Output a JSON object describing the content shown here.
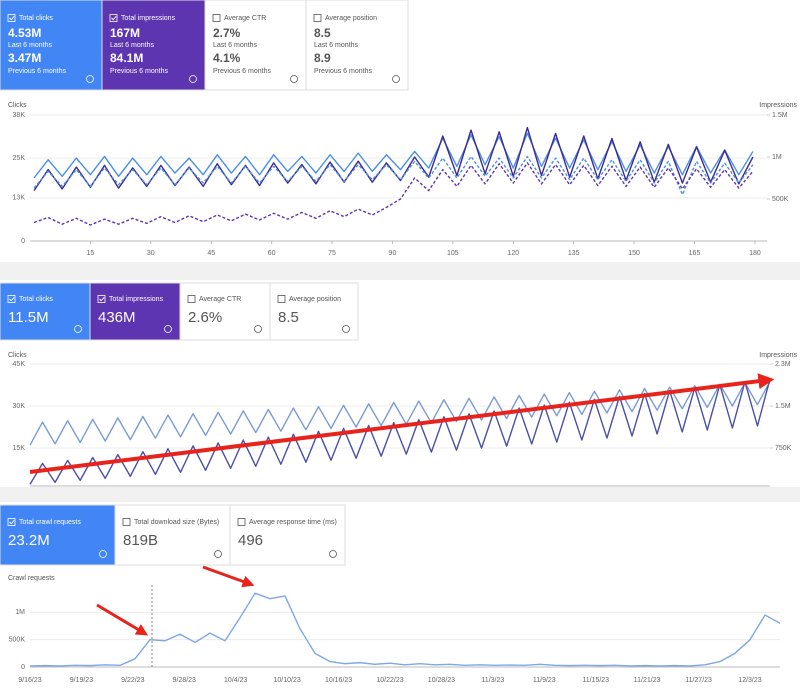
{
  "panels": [
    {
      "cards": [
        {
          "title": "Total clicks",
          "value": "4.53M",
          "period": "Last 6 months",
          "previous_value": "3.47M",
          "previous_period": "Previous 6 months",
          "color": "#4285f4"
        },
        {
          "title": "Total impressions",
          "value": "167M",
          "period": "Last 6 months",
          "previous_value": "84.1M",
          "previous_period": "Previous 6 months",
          "color": "#5e35b1"
        },
        {
          "title": "Average CTR",
          "value": "2.7%",
          "period": "Last 6 months",
          "previous_value": "4.1%",
          "previous_period": "Previous 6 months"
        },
        {
          "title": "Average position",
          "value": "8.5",
          "period": "Last 6 months",
          "previous_value": "8.9",
          "previous_period": "Previous 6 months"
        }
      ],
      "chart": {
        "type": "line",
        "y_label": "Clicks",
        "y2_label": "Impressions",
        "ylim": [
          0,
          38000
        ],
        "yticks": [
          0,
          {
            "value": 13000,
            "label": "13K"
          },
          {
            "value": 25000,
            "label": "25K"
          },
          {
            "value": 38000,
            "label": "38K"
          }
        ],
        "y2lim": [
          0,
          1500000
        ],
        "y2ticks": [
          {
            "value": 500000,
            "label": "500K"
          },
          {
            "value": 1000000,
            "label": "1M"
          },
          {
            "value": 1500000,
            "label": "1.5M"
          }
        ],
        "xlim": [
          0,
          183
        ],
        "xticks": [
          15,
          30,
          45,
          60,
          75,
          90,
          105,
          120,
          135,
          150,
          165,
          180
        ],
        "x": [
          1,
          4.5,
          8,
          11.5,
          15,
          18.5,
          22,
          25.5,
          29,
          32.5,
          36,
          39.5,
          43,
          46.5,
          50,
          53.5,
          57,
          60.5,
          64,
          67.5,
          71,
          74.5,
          78,
          81.5,
          85,
          88.5,
          92,
          95.5,
          99,
          102.5,
          106,
          109.5,
          113,
          116.5,
          120,
          123.5,
          127,
          130.5,
          134,
          137.5,
          141,
          144.5,
          148,
          151.5,
          155,
          158.5,
          162,
          165.5,
          169,
          172.5,
          176,
          179.5
        ],
        "series": [
          {
            "color": "#4a90e8",
            "dashed": false,
            "axis": "y",
            "values": [
              19000,
              24500,
              19500,
              25000,
              20000,
              25500,
              19500,
              25000,
              20000,
              25500,
              20500,
              25000,
              20000,
              26000,
              20500,
              25500,
              20000,
              26000,
              21000,
              25500,
              20500,
              26000,
              21000,
              26500,
              21000,
              26000,
              21500,
              27000,
              22000,
              31000,
              22500,
              32000,
              23000,
              31500,
              22000,
              32500,
              22500,
              31000,
              22000,
              30500,
              21500,
              30000,
              21000,
              29000,
              20500,
              28500,
              20000,
              28500,
              20500,
              27500,
              20000,
              27000
            ]
          },
          {
            "color": "#3d2a8f",
            "dashed": false,
            "axis": "y2",
            "values": [
              600000,
              850000,
              620000,
              880000,
              640000,
              900000,
              630000,
              870000,
              650000,
              900000,
              660000,
              880000,
              650000,
              920000,
              670000,
              900000,
              660000,
              930000,
              690000,
              910000,
              680000,
              940000,
              700000,
              950000,
              700000,
              930000,
              720000,
              1000000,
              760000,
              1250000,
              780000,
              1320000,
              800000,
              1300000,
              770000,
              1350000,
              780000,
              1280000,
              760000,
              1250000,
              740000,
              1220000,
              720000,
              1180000,
              700000,
              1150000,
              690000,
              1120000,
              700000,
              1080000,
              680000,
              1000000
            ]
          },
          {
            "color": "#4a90e8",
            "dashed": true,
            "axis": "y",
            "values": [
              16000,
              21000,
              16500,
              21500,
              16500,
              22000,
              17000,
              21500,
              17000,
              22000,
              17000,
              22000,
              17500,
              22500,
              17500,
              22500,
              17500,
              22500,
              18000,
              22500,
              18000,
              23000,
              18000,
              23000,
              18500,
              23000,
              18500,
              24000,
              19000,
              25000,
              19000,
              25500,
              19500,
              25000,
              19000,
              25500,
              19000,
              25000,
              18500,
              25000,
              18500,
              24500,
              18000,
              24500,
              17500,
              24000,
              14000,
              24000,
              17500,
              23500,
              17500,
              23000
            ]
          },
          {
            "color": "#5e35b1",
            "dashed": true,
            "axis": "y2",
            "values": [
              220000,
              280000,
              200000,
              270000,
              190000,
              260000,
              200000,
              270000,
              210000,
              290000,
              220000,
              300000,
              230000,
              310000,
              240000,
              320000,
              250000,
              330000,
              260000,
              340000,
              270000,
              360000,
              290000,
              380000,
              310000,
              400000,
              500000,
              750000,
              600000,
              850000,
              650000,
              900000,
              680000,
              920000,
              690000,
              930000,
              680000,
              910000,
              670000,
              900000,
              660000,
              890000,
              650000,
              880000,
              640000,
              870000,
              620000,
              860000,
              640000,
              850000,
              630000,
              830000
            ]
          }
        ]
      }
    },
    {
      "cards": [
        {
          "title": "Total clicks",
          "value": "11.5M",
          "color": "#4285f4"
        },
        {
          "title": "Total impressions",
          "value": "436M",
          "color": "#5e35b1"
        },
        {
          "title": "Average CTR",
          "value": "2.6%"
        },
        {
          "title": "Average position",
          "value": "8.5"
        }
      ],
      "chart": {
        "type": "line",
        "y_label": "Clicks",
        "y2_label": "Impressions",
        "ylim": [
          0,
          45000
        ],
        "yticks": [
          {
            "value": 15000,
            "label": "15K"
          },
          {
            "value": 30000,
            "label": "30K"
          },
          {
            "value": 45000,
            "label": "45K"
          }
        ],
        "y2lim": [
          0,
          2250000
        ],
        "y2ticks": [
          {
            "value": 750000,
            "label": "750K"
          },
          {
            "value": 1500000,
            "label": "1.5M"
          },
          {
            "value": 2250000,
            "label": "2.3M"
          }
        ],
        "series": [
          {
            "color": "#7b9bd6",
            "dashed": false,
            "axis": "y",
            "values": [
              16000,
              24250,
              16500,
              24750,
              17000,
              25250,
              17500,
              25750,
              18000,
              26250,
              18500,
              26750,
              19000,
              27250,
              19500,
              27750,
              20000,
              28250,
              20500,
              28750,
              21000,
              29250,
              21500,
              29750,
              22000,
              30250,
              22500,
              30750,
              23000,
              31250,
              23500,
              31750,
              24000,
              32250,
              24500,
              32750,
              25000,
              33250,
              25500,
              33750,
              26000,
              34250,
              26500,
              34750,
              27000,
              35250,
              27500,
              35750,
              28000,
              36250,
              28500,
              36750,
              29000,
              37250,
              29500,
              37750,
              30000,
              38250,
              30500,
              38750
            ]
          },
          {
            "color": "#4a4fa8",
            "dashed": false,
            "axis": "y2",
            "values": [
              100000,
              476000,
              136000,
              528000,
              172000,
              580000,
              208000,
              632000,
              244000,
              684000,
              280000,
              736000,
              316000,
              788000,
              352000,
              840000,
              388000,
              892000,
              424000,
              944000,
              460000,
              996000,
              496000,
              1048000,
              532000,
              1100000,
              568000,
              1152000,
              604000,
              1204000,
              640000,
              1256000,
              676000,
              1308000,
              712000,
              1360000,
              748000,
              1412000,
              784000,
              1464000,
              820000,
              1516000,
              856000,
              1568000,
              892000,
              1620000,
              928000,
              1672000,
              964000,
              1724000,
              1000000,
              1776000,
              1036000,
              1828000,
              1072000,
              1880000,
              1108000,
              1932000,
              1144000,
              1984000
            ]
          }
        ]
      }
    },
    {
      "cards": [
        {
          "title": "Total crawl requests",
          "value": "23.2M",
          "color": "#4285f4"
        },
        {
          "title": "Total download size (Bytes)",
          "value": "819B"
        },
        {
          "title": "Average response time (ms)",
          "value": "496"
        }
      ],
      "chart": {
        "type": "line",
        "y_label": "Crawl requests",
        "ylim": [
          0,
          1500000
        ],
        "yticks": [
          0,
          {
            "value": 500000,
            "label": "500K"
          },
          {
            "value": 1000000,
            "label": "1M"
          }
        ],
        "x_labels": [
          "9/16/23",
          "9/19/23",
          "9/22/23",
          "9/28/23",
          "10/4/23",
          "10/10/23",
          "10/16/23",
          "10/22/23",
          "10/28/23",
          "11/3/23",
          "11/9/23",
          "11/15/23",
          "11/21/23",
          "11/27/23",
          "12/3/23"
        ],
        "series": [
          {
            "color": "#7ea7e8",
            "dashed": false,
            "axis": "y",
            "values": [
              20000,
              25000,
              20000,
              30000,
              25000,
              40000,
              30000,
              150000,
              500000,
              480000,
              600000,
              450000,
              620000,
              480000,
              900000,
              1350000,
              1250000,
              1300000,
              700000,
              250000,
              100000,
              60000,
              80000,
              50000,
              70000,
              40000,
              60000,
              40000,
              50000,
              30000,
              40000,
              30000,
              35000,
              30000,
              50000,
              30000,
              25000,
              30000,
              25000,
              30000,
              20000,
              25000,
              20000,
              25000,
              20000,
              40000,
              100000,
              250000,
              500000,
              950000,
              800000
            ]
          }
        ]
      }
    }
  ]
}
